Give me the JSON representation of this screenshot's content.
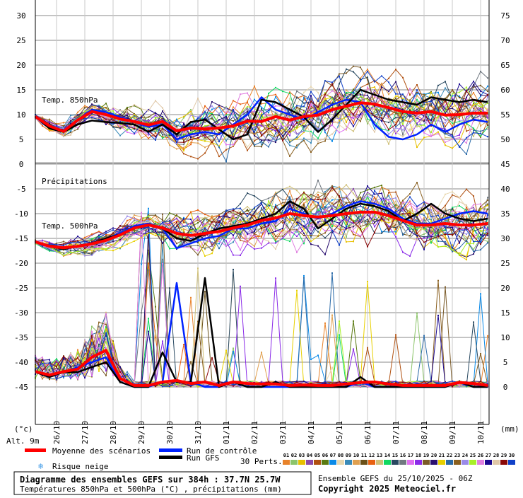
{
  "chart_data": {
    "type": "line",
    "title": "Diagramme des ensembles GEFS sur 384h : 37.7N 25.7W",
    "subtitle": "Températures 850hPa et 500hPa (°C) , précipitations (mm)",
    "run_info": "Ensemble GEFS du 25/10/2025 - 06Z",
    "copyright": "Copyright 2025 Meteociel.fr",
    "altitude": "Alt. 9m",
    "left_unit": "(°c)",
    "right_unit": "(mm)",
    "time_step_hours": 12,
    "start": "25/10 06Z",
    "x_tick_labels": [
      "26/10",
      "27/10",
      "28/10",
      "29/10",
      "30/10",
      "31/10",
      "01/11",
      "02/11",
      "03/11",
      "04/11",
      "05/11",
      "06/11",
      "07/11",
      "08/11",
      "09/11",
      "10/11"
    ],
    "panels": {
      "t850": {
        "label": "Temp. 850hPa",
        "ylim": [
          0,
          30
        ],
        "left_ticks": [
          "30",
          "25",
          "20",
          "15",
          "10",
          "5",
          "0"
        ],
        "right_ticks": [
          "75",
          "70",
          "65",
          "60",
          "55",
          "50",
          "45"
        ],
        "mean": [
          9.6,
          7.7,
          6.6,
          8.9,
          10.6,
          10,
          9.1,
          8.6,
          7.9,
          8.6,
          6.7,
          7.3,
          7.1,
          7.3,
          7.7,
          8.7,
          8.6,
          9.6,
          8.9,
          9.6,
          9.9,
          11,
          11.7,
          12.4,
          12.1,
          11.4,
          10.6,
          10.3,
          10.6,
          9.9,
          10,
          10.3,
          10.3
        ],
        "control": [
          9.6,
          7.5,
          6.5,
          9,
          11,
          10.5,
          9.5,
          8.5,
          7.5,
          8,
          5,
          6,
          6.5,
          6,
          8,
          10,
          13.5,
          11,
          10,
          9,
          10.5,
          12,
          13,
          12.5,
          8,
          5.5,
          5,
          6,
          8,
          6.5,
          8,
          9,
          8.5
        ],
        "gfs": [
          9.6,
          7.2,
          6.5,
          8,
          8.8,
          8.5,
          8.3,
          8,
          6.5,
          8,
          6,
          8.5,
          9,
          7,
          5,
          6,
          13,
          12.5,
          11,
          9.5,
          6.5,
          9,
          12,
          15,
          14,
          13,
          12.5,
          12,
          13.5,
          13,
          12.5,
          13,
          12.5
        ],
        "spread": [
          0.4,
          0.8,
          1,
          1.2,
          1.3,
          1.5,
          1.8,
          2,
          2.4,
          2.8,
          3,
          3.3,
          3.5,
          3.5,
          3.6,
          3.7,
          3.8,
          3.8,
          3.9,
          4,
          4,
          4,
          4,
          4,
          4,
          4,
          4,
          4,
          4,
          4,
          4,
          4,
          4
        ]
      },
      "t500": {
        "label": "Temp. 500hPa",
        "ylim": [
          -45,
          -5
        ],
        "left_ticks": [
          "-5",
          "-10",
          "-15",
          "-20",
          "-25",
          "-30",
          "-35",
          "-40",
          "-45"
        ],
        "mean": [
          -15.7,
          -16.6,
          -16.9,
          -16.6,
          -16.1,
          -15.4,
          -14.3,
          -12.9,
          -12.3,
          -12.9,
          -14,
          -14.4,
          -14,
          -13.6,
          -12.9,
          -12.3,
          -11.4,
          -10.9,
          -10,
          -10.4,
          -10.7,
          -10.4,
          -10,
          -9.7,
          -9.7,
          -10.4,
          -11.4,
          -12.3,
          -12.3,
          -12,
          -12.3,
          -12.3,
          -12
        ],
        "control": [
          -15.7,
          -16.5,
          -17,
          -16.5,
          -16,
          -15,
          -14,
          -12.5,
          -12,
          -13,
          -17,
          -16,
          -15,
          -14.5,
          -13,
          -13,
          -12,
          -11.5,
          -9,
          -10,
          -11,
          -10,
          -8.5,
          -7.5,
          -8,
          -9,
          -11,
          -12,
          -12,
          -11,
          -10,
          -9.5,
          -10
        ],
        "gfs": [
          -15.7,
          -16.5,
          -17.2,
          -16.5,
          -16,
          -15,
          -14.2,
          -12.8,
          -12.3,
          -13,
          -15,
          -15.5,
          -14,
          -13,
          -12.5,
          -12,
          -11,
          -10,
          -7.5,
          -9,
          -13,
          -11,
          -9,
          -8,
          -8.5,
          -9.5,
          -11.5,
          -10,
          -8,
          -10,
          -11,
          -11.5,
          -11
        ],
        "spread": [
          0.4,
          0.8,
          1,
          1.3,
          1.5,
          1.5,
          1.5,
          1.5,
          1.8,
          2.2,
          2.8,
          3,
          3.2,
          3.3,
          3.4,
          3.5,
          3.6,
          3.7,
          3.8,
          3.9,
          4,
          4,
          4,
          4,
          4,
          4,
          4,
          4,
          4,
          4,
          4,
          4,
          4
        ]
      },
      "precip": {
        "label": "Précipitations",
        "ylim": [
          0,
          45
        ],
        "right_ticks": [
          "40",
          "35",
          "30",
          "25",
          "20",
          "15",
          "10",
          "5",
          "0"
        ],
        "mean": [
          3.1,
          2.4,
          3.1,
          3.6,
          6,
          7.4,
          1.7,
          0.3,
          0.3,
          1,
          1.3,
          0.7,
          1,
          0.3,
          1,
          0.7,
          0.6,
          0.6,
          0.3,
          0.4,
          0.3,
          0.3,
          0.6,
          0.9,
          1,
          0.6,
          0.3,
          0.3,
          0.3,
          0.3,
          0.9,
          0.7,
          0.3
        ],
        "control": [
          3,
          2,
          3,
          4,
          5,
          6,
          1,
          0,
          0,
          1,
          21,
          1,
          0,
          0,
          1,
          0,
          0,
          0,
          0,
          0,
          0,
          0,
          0,
          1,
          0,
          0,
          0,
          0,
          0,
          0,
          1,
          0,
          0
        ],
        "gfs": [
          3,
          2,
          3,
          3,
          4,
          5,
          1,
          0,
          0,
          7,
          1,
          1,
          22,
          0,
          1,
          0,
          0,
          1,
          0,
          0,
          0,
          0,
          0,
          2,
          0,
          0,
          0,
          0,
          0,
          0,
          1,
          0,
          0
        ]
      }
    },
    "legend": {
      "mean": "Moyenne des scénarios",
      "control": "Run de contrôle",
      "gfs": "Run GFS",
      "snow": "Risque neige",
      "perts": "30 Perts.",
      "perturbations": [
        {
          "id": "01",
          "color": "#e8822a"
        },
        {
          "id": "02",
          "color": "#8cc46a"
        },
        {
          "id": "03",
          "color": "#e8c000"
        },
        {
          "id": "04",
          "color": "#8c4aa8"
        },
        {
          "id": "05",
          "color": "#b05010"
        },
        {
          "id": "06",
          "color": "#5a7a10"
        },
        {
          "id": "07",
          "color": "#0a8ae8"
        },
        {
          "id": "08",
          "color": "#e8d8b0"
        },
        {
          "id": "09",
          "color": "#3a8ab8"
        },
        {
          "id": "10",
          "color": "#e0a050"
        },
        {
          "id": "11",
          "color": "#6a5018"
        },
        {
          "id": "12",
          "color": "#e86010"
        },
        {
          "id": "13",
          "color": "#d0c078"
        },
        {
          "id": "14",
          "color": "#10d860"
        },
        {
          "id": "15",
          "color": "#284860"
        },
        {
          "id": "16",
          "color": "#707880"
        },
        {
          "id": "17",
          "color": "#e070f0"
        },
        {
          "id": "18",
          "color": "#8a2ae8"
        },
        {
          "id": "19",
          "color": "#7a5a28"
        },
        {
          "id": "20",
          "color": "#2a1070"
        },
        {
          "id": "21",
          "color": "#e8d000"
        },
        {
          "id": "22",
          "color": "#2a6aa8"
        },
        {
          "id": "23",
          "color": "#8a6020"
        },
        {
          "id": "24",
          "color": "#9a8ae8"
        },
        {
          "id": "25",
          "color": "#a8f028"
        },
        {
          "id": "26",
          "color": "#e080e0"
        },
        {
          "id": "27",
          "color": "#1a0890"
        },
        {
          "id": "28",
          "color": "#e0c8a8"
        },
        {
          "id": "29",
          "color": "#8a0808"
        },
        {
          "id": "30",
          "color": "#1040c8"
        }
      ]
    },
    "colors": {
      "mean": "#ff0000",
      "control": "#0022ff",
      "gfs": "#000000",
      "grid": "#c4c4c4"
    }
  }
}
